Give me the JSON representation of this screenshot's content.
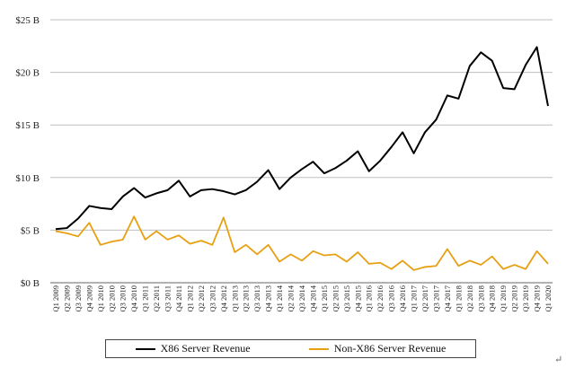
{
  "chart_data": {
    "type": "line",
    "title": "",
    "xlabel": "",
    "ylabel": "",
    "ylim": [
      0,
      25
    ],
    "yticks": [
      0,
      5,
      10,
      15,
      20,
      25
    ],
    "ytick_labels": [
      "$0 B",
      "$5 B",
      "$10 B",
      "$15 B",
      "$20 B",
      "$25 B"
    ],
    "grid": "horizontal",
    "legend_position": "bottom",
    "categories": [
      "Q1 2009",
      "Q2 2009",
      "Q3 2009",
      "Q4 2009",
      "Q1 2010",
      "Q2 2010",
      "Q3 2010",
      "Q4 2010",
      "Q1 2011",
      "Q2 2011",
      "Q3 2011",
      "Q4 2011",
      "Q1 2012",
      "Q2 2012",
      "Q3 2012",
      "Q4 2012",
      "Q1 2013",
      "Q2 2013",
      "Q3 2013",
      "Q4 2013",
      "Q1 2014",
      "Q2 2014",
      "Q3 2014",
      "Q4 2014",
      "Q1 2015",
      "Q2 2015",
      "Q3 2015",
      "Q4 2015",
      "Q1 2016",
      "Q2 2016",
      "Q3 2016",
      "Q4 2016",
      "Q1 2017",
      "Q2 2017",
      "Q3 2017",
      "Q4 2017",
      "Q1 2018",
      "Q2 2018",
      "Q3 2018",
      "Q4 2018",
      "Q1 2019",
      "Q2 2019",
      "Q3 2019",
      "Q4 2019",
      "Q1 2020"
    ],
    "series": [
      {
        "name": "X86 Server Revenue",
        "color": "#000000",
        "values": [
          5.1,
          5.2,
          6.1,
          7.3,
          7.1,
          7.0,
          8.2,
          9.0,
          8.1,
          8.5,
          8.8,
          9.7,
          8.2,
          8.8,
          8.9,
          8.7,
          8.4,
          8.8,
          9.6,
          10.7,
          8.9,
          10.0,
          10.8,
          11.5,
          10.4,
          10.9,
          11.6,
          12.5,
          10.6,
          11.6,
          12.9,
          14.3,
          12.3,
          14.3,
          15.5,
          17.8,
          17.5,
          20.6,
          21.9,
          21.1,
          18.5,
          18.4,
          20.7,
          22.4,
          16.8
        ]
      },
      {
        "name": "Non-X86 Server Revenue",
        "color": "#E8A013",
        "values": [
          4.9,
          4.7,
          4.4,
          5.7,
          3.6,
          3.9,
          4.1,
          6.3,
          4.1,
          4.9,
          4.1,
          4.5,
          3.7,
          4.0,
          3.6,
          6.2,
          2.9,
          3.6,
          2.7,
          3.6,
          2.0,
          2.7,
          2.1,
          3.0,
          2.6,
          2.7,
          2.0,
          2.9,
          1.8,
          1.9,
          1.3,
          2.1,
          1.2,
          1.5,
          1.6,
          3.2,
          1.6,
          2.1,
          1.7,
          2.5,
          1.3,
          1.7,
          1.3,
          3.0,
          1.8
        ]
      }
    ]
  },
  "legend": {
    "items": [
      {
        "label": "X86 Server Revenue",
        "color": "#000000"
      },
      {
        "label": "Non-X86 Server Revenue",
        "color": "#E8A013"
      }
    ]
  },
  "return_mark": "↵"
}
